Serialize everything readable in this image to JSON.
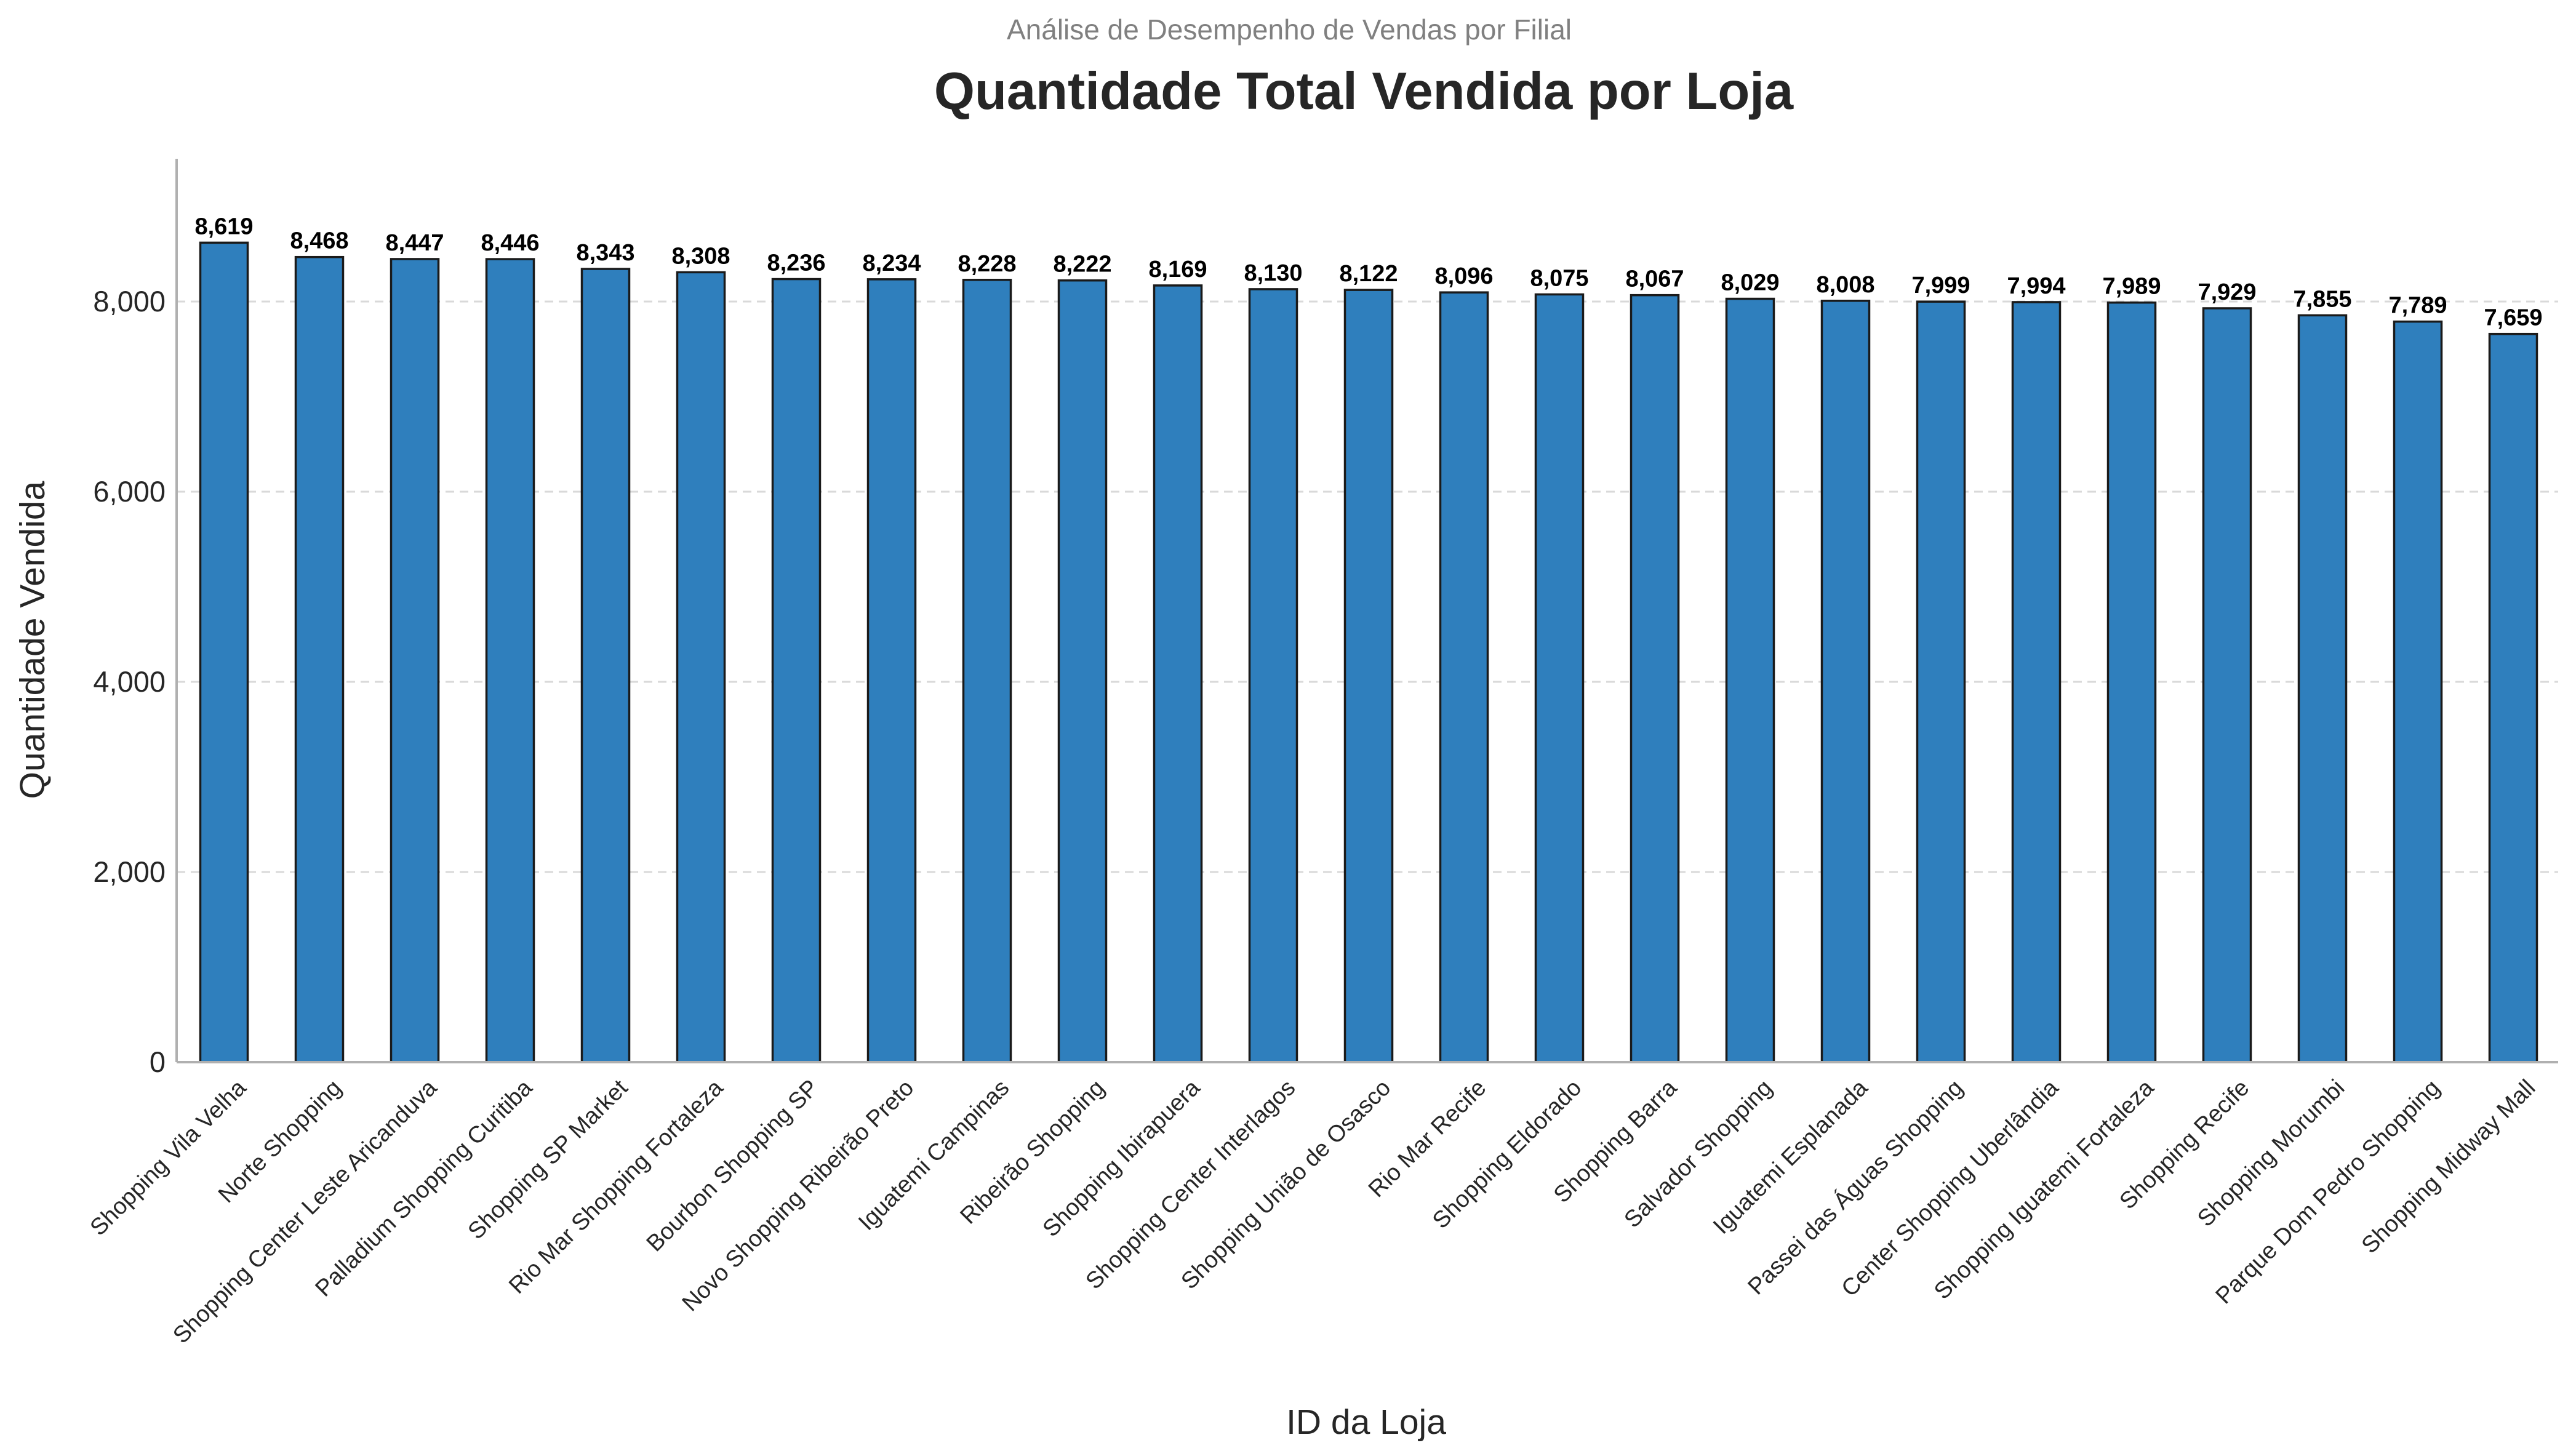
{
  "chart_data": {
    "type": "bar",
    "subtitle": "Análise de Desempenho de Vendas por Filial",
    "title": "Quantidade Total Vendida por Loja",
    "xlabel": "ID da Loja",
    "ylabel": "Quantidade Vendida",
    "ylim": [
      0,
      9500
    ],
    "yticks": [
      0,
      2000,
      4000,
      6000,
      8000
    ],
    "ytick_labels": [
      "0",
      "2,000",
      "4,000",
      "6,000",
      "8,000"
    ],
    "grid": "horizontal-dashed",
    "bar_color": "#2f7fbd",
    "bar_edge_color": "#1a1a1a",
    "categories": [
      "Shopping Vila Velha",
      "Norte Shopping",
      "Shopping Center Leste Aricanduva",
      "Palladium Shopping Curitiba",
      "Shopping SP Market",
      "Rio Mar Shopping Fortaleza",
      "Bourbon Shopping SP",
      "Novo Shopping Ribeirão Preto",
      "Iguatemi Campinas",
      "Ribeirão Shopping",
      "Shopping Ibirapuera",
      "Shopping Center Interlagos",
      "Shopping União de Osasco",
      "Rio Mar Recife",
      "Shopping Eldorado",
      "Shopping Barra",
      "Salvador Shopping",
      "Iguatemi Esplanada",
      "Passei das Águas Shopping",
      "Center Shopping Uberlândia",
      "Shopping Iguatemi Fortaleza",
      "Shopping Recife",
      "Shopping Morumbi",
      "Parque Dom Pedro Shopping",
      "Shopping Midway Mall"
    ],
    "values": [
      8619,
      8468,
      8447,
      8446,
      8343,
      8308,
      8236,
      8234,
      8228,
      8222,
      8169,
      8130,
      8122,
      8096,
      8075,
      8067,
      8029,
      8008,
      7999,
      7994,
      7989,
      7929,
      7855,
      7789,
      7659
    ],
    "value_labels": [
      "8,619",
      "8,468",
      "8,447",
      "8,446",
      "8,343",
      "8,308",
      "8,236",
      "8,234",
      "8,228",
      "8,222",
      "8,169",
      "8,130",
      "8,122",
      "8,096",
      "8,075",
      "8,067",
      "8,029",
      "8,008",
      "7,999",
      "7,994",
      "7,989",
      "7,929",
      "7,855",
      "7,789",
      "7,659"
    ]
  }
}
